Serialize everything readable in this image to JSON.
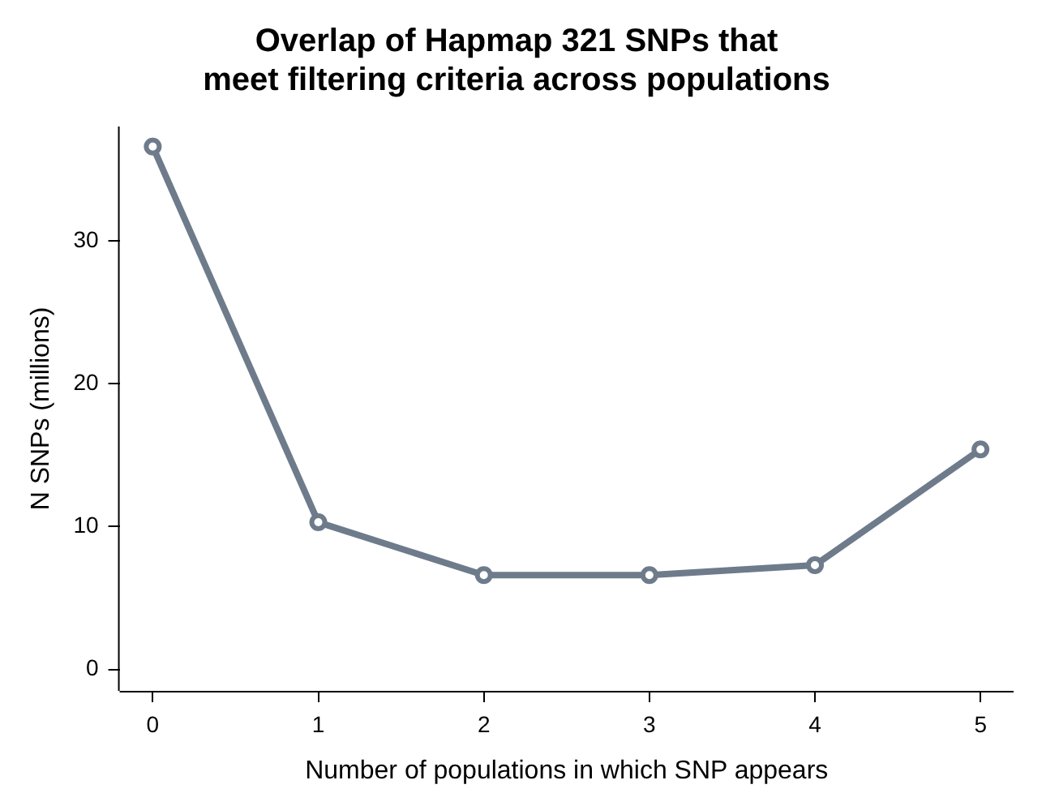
{
  "chart_data": {
    "type": "line",
    "title": [
      "Overlap of Hapmap 321 SNPs that",
      "meet filtering criteria across populations"
    ],
    "xlabel": "Number of populations in which SNP appears",
    "ylabel": "N SNPs (millions)",
    "x": [
      0,
      1,
      2,
      3,
      4,
      5
    ],
    "series": [
      {
        "color": "#6e7b8b",
        "values": [
          36.6,
          10.3,
          6.6,
          6.6,
          7.3,
          15.4
        ]
      }
    ],
    "xlim": [
      -0.2,
      5.2
    ],
    "xticks": [
      0,
      1,
      2,
      3,
      4,
      5
    ],
    "ylim": [
      -1.5,
      38
    ],
    "yticks": [
      0,
      10,
      20,
      30
    ],
    "grid": false,
    "legend": false,
    "marker": "circle",
    "line_style": "solid"
  }
}
